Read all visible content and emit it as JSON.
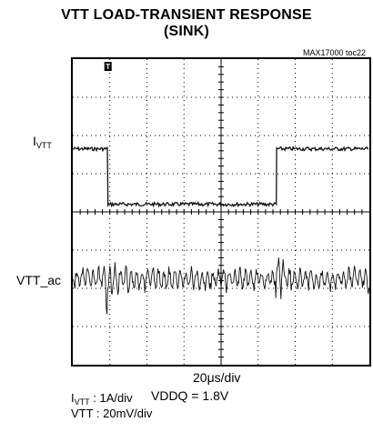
{
  "title_line1": "VTT LOAD-TRANSIENT RESPONSE",
  "title_line2": "(SINK)",
  "figure_id": "MAX17000 toc22",
  "channel_labels": {
    "ivtt_main": "I",
    "ivtt_sub": "VTT",
    "vtt_ac": "VTT_ac"
  },
  "trigger_marker": "T",
  "annotation": "VDDQ = 1.8V",
  "time_scale": "20μs/div",
  "footer": {
    "ivtt_main": "I",
    "ivtt_sub": "VTT",
    "ivtt_scale": " : 1A/div",
    "vtt_scale": "VTT : 20mV/div"
  },
  "colors": {
    "trace": "#111111",
    "grid": "#000000"
  },
  "chart_data": {
    "type": "line",
    "x_divisions": 8,
    "y_divisions": 8,
    "x_unit": "μs",
    "x_per_div": 20,
    "series": [
      {
        "name": "IVTT",
        "scale": "1A/div",
        "points": [
          {
            "div": 0.0,
            "level_div": 0.0
          },
          {
            "div": 0.95,
            "level_div": 0.0
          },
          {
            "div": 0.95,
            "level_div": -1.45
          },
          {
            "div": 5.5,
            "level_div": -1.45
          },
          {
            "div": 5.5,
            "level_div": 0.0
          },
          {
            "div": 8.0,
            "level_div": 0.0
          }
        ]
      },
      {
        "name": "VTT_ac",
        "scale": "20mV/div",
        "ripple_pp_div": 0.55,
        "transients_at_div": [
          0.95,
          5.5
        ]
      }
    ]
  }
}
